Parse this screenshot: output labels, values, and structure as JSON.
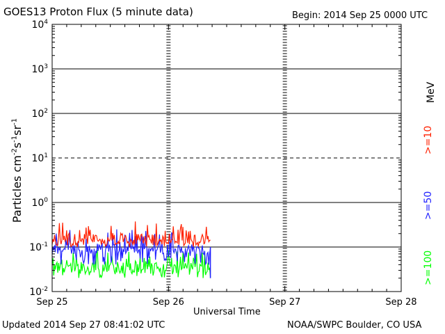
{
  "header": {
    "title": "GOES13 Proton Flux (5 minute data)",
    "begin": "Begin: 2014 Sep 25 0000 UTC"
  },
  "footer": {
    "updated": "Updated 2014 Sep 27 08:41:02 UTC",
    "source": "NOAA/SWPC Boulder, CO USA"
  },
  "legend": {
    "unit": "MeV",
    "items": [
      {
        "label": ">=10",
        "color": "#ff2000"
      },
      {
        "label": ">=50",
        "color": "#2020ff"
      },
      {
        "label": ">=100",
        "color": "#00ff00"
      }
    ]
  },
  "colors": {
    "p10": "#ff2000",
    "p50": "#2020ff",
    "p100": "#00ff00",
    "axis": "#000000"
  },
  "chart_data": {
    "type": "line",
    "title": "GOES13 Proton Flux (5 minute data)",
    "xlabel": "Universal Time",
    "ylabel_base": "Particles cm",
    "ylabel_sup1": "-2",
    "ylabel_mid1": "s",
    "ylabel_sup2": "-1",
    "ylabel_mid2": "sr",
    "ylabel_sup3": "-1",
    "x_ticks": [
      "Sep 25",
      "Sep 26",
      "Sep 27",
      "Sep 28"
    ],
    "xlim_days": [
      0,
      3
    ],
    "y_scale": "log",
    "ylim": [
      0.01,
      10000
    ],
    "y_ticks": [
      {
        "base": "10",
        "exp": "4",
        "value": 10000
      },
      {
        "base": "10",
        "exp": "3",
        "value": 1000
      },
      {
        "base": "10",
        "exp": "2",
        "value": 100
      },
      {
        "base": "10",
        "exp": "1",
        "value": 10
      },
      {
        "base": "10",
        "exp": "0",
        "value": 1
      },
      {
        "base": "10",
        "exp": "-1",
        "value": 0.1
      },
      {
        "base": "10",
        "exp": "-2",
        "value": 0.01
      }
    ],
    "series": [
      {
        "name": ">=10 MeV",
        "color": "#ff2000",
        "data_end_day": 1.36,
        "typical": 0.15,
        "range": [
          0.1,
          0.4
        ]
      },
      {
        "name": ">=50 MeV",
        "color": "#2020ff",
        "data_end_day": 1.36,
        "typical": 0.09,
        "range": [
          0.04,
          0.25
        ]
      },
      {
        "name": ">=100 MeV",
        "color": "#00ff00",
        "data_end_day": 1.36,
        "typical": 0.035,
        "range": [
          0.02,
          0.09
        ]
      }
    ]
  }
}
